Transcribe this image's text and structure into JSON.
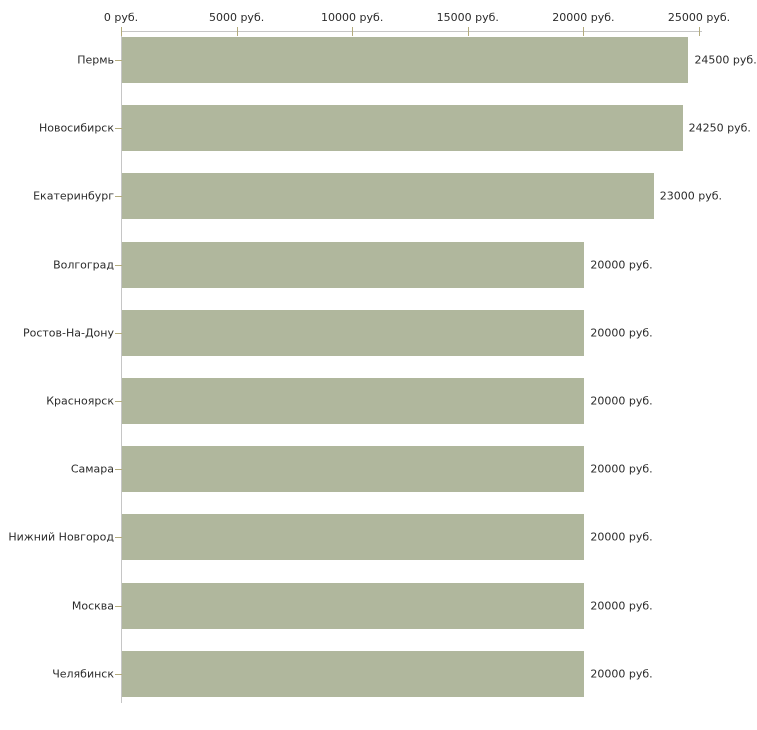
{
  "chart_data": {
    "type": "bar",
    "orientation": "horizontal",
    "title": "",
    "unit": "руб.",
    "categories": [
      "Пермь",
      "Новосибирск",
      "Екатеринбург",
      "Волгоград",
      "Ростов-На-Дону",
      "Красноярск",
      "Самара",
      "Нижний Новгород",
      "Москва",
      "Челябинск"
    ],
    "values": [
      24500,
      24250,
      23000,
      20000,
      20000,
      20000,
      20000,
      20000,
      20000,
      20000
    ],
    "value_labels": [
      "24500 руб.",
      "24250 руб.",
      "23000 руб.",
      "20000 руб.",
      "20000 руб.",
      "20000 руб.",
      "20000 руб.",
      "20000 руб.",
      "20000 руб.",
      "20000 руб."
    ],
    "x_axis": {
      "position": "top",
      "min": 0,
      "max": 25000,
      "tick_values": [
        0,
        5000,
        10000,
        15000,
        20000,
        25000
      ],
      "tick_labels": [
        "0 руб.",
        "5000 руб.",
        "10000 руб.",
        "15000 руб.",
        "20000 руб.",
        "25000 руб."
      ]
    },
    "grid": false,
    "legend": null,
    "colors": {
      "bar": "#b0b79d",
      "axis_line": "#c6c6c6",
      "tick": "#b3ab7d",
      "text": "#2b2b2b",
      "background": "#ffffff"
    }
  }
}
